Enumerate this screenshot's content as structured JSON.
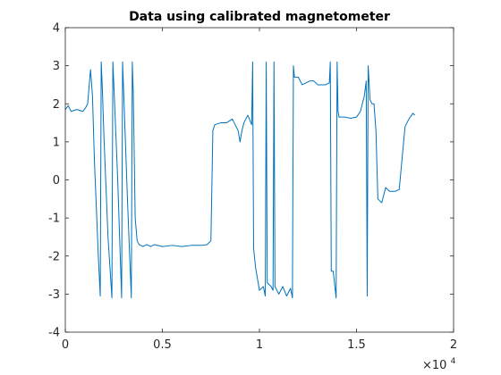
{
  "chart_data": {
    "type": "line",
    "title": "Data using calibrated magnetometer",
    "xlabel": "",
    "ylabel": "",
    "xlim": [
      0,
      20000
    ],
    "ylim": [
      -4,
      4
    ],
    "x_ticks": [
      0,
      5000,
      10000,
      15000,
      20000
    ],
    "x_tick_labels": [
      "0",
      "0.5",
      "1",
      "1.5",
      "2"
    ],
    "x_exponent_label": "×10",
    "x_exponent_power": "4",
    "y_ticks": [
      -4,
      -3,
      -2,
      -1,
      0,
      1,
      2,
      3,
      4
    ],
    "y_tick_labels": [
      "-4",
      "-3",
      "-2",
      "-1",
      "0",
      "1",
      "2",
      "3",
      "4"
    ],
    "grid": false,
    "line_color": "#0072bd",
    "series": [
      {
        "x": [
          0,
          150,
          300,
          600,
          900,
          1050,
          1150,
          1250,
          1300,
          1400,
          1500,
          1700,
          1800,
          1850,
          1900,
          2000,
          2200,
          2400,
          2450,
          2500,
          2700,
          2900,
          2950,
          3000,
          3200,
          3400,
          3450,
          3500,
          3600,
          3700,
          3750,
          3800,
          4000,
          4200,
          4400,
          4600,
          5000,
          5500,
          6000,
          6500,
          7000,
          7300,
          7500,
          7600,
          7700,
          8000,
          8300,
          8600,
          8800,
          8900,
          9000,
          9100,
          9200,
          9400,
          9600,
          9650,
          9700,
          9800,
          10000,
          10200,
          10300,
          10350,
          10400,
          10600,
          10700,
          10750,
          10800,
          10900,
          11000,
          11200,
          11400,
          11600,
          11700,
          11750,
          11800,
          12000,
          12200,
          12400,
          12600,
          12800,
          13000,
          13200,
          13400,
          13600,
          13650,
          13700,
          13800,
          13950,
          14000,
          14050,
          14100,
          14400,
          14700,
          15000,
          15200,
          15400,
          15500,
          15550,
          15600,
          15700,
          15800,
          15900,
          16000,
          16100,
          16300,
          16500,
          16700,
          17000,
          17200,
          17300,
          17500,
          17700,
          17900,
          18000
        ],
        "y": [
          1.85,
          1.95,
          1.8,
          1.85,
          1.8,
          1.9,
          2.0,
          2.6,
          2.9,
          2.2,
          0.5,
          -2.0,
          -3.05,
          3.1,
          2.5,
          1.0,
          -1.5,
          -3.1,
          3.1,
          2.5,
          0.0,
          -3.1,
          3.1,
          2.4,
          -0.5,
          -3.1,
          3.1,
          2.3,
          -1.0,
          -1.6,
          -1.65,
          -1.7,
          -1.75,
          -1.7,
          -1.75,
          -1.7,
          -1.75,
          -1.72,
          -1.75,
          -1.72,
          -1.72,
          -1.7,
          -1.6,
          1.3,
          1.45,
          1.5,
          1.5,
          1.6,
          1.4,
          1.3,
          1.0,
          1.3,
          1.5,
          1.7,
          1.45,
          3.1,
          -1.8,
          -2.3,
          -2.9,
          -2.8,
          -3.05,
          3.1,
          -2.7,
          -2.8,
          -2.9,
          3.1,
          -2.8,
          -2.9,
          -3.0,
          -2.8,
          -3.05,
          -2.85,
          -3.1,
          3.0,
          2.7,
          2.7,
          2.5,
          2.55,
          2.6,
          2.6,
          2.5,
          2.5,
          2.5,
          2.55,
          3.1,
          -2.4,
          -2.4,
          -3.1,
          3.1,
          1.8,
          1.65,
          1.65,
          1.62,
          1.65,
          1.8,
          2.2,
          2.6,
          -3.05,
          3.0,
          2.1,
          2.0,
          2.0,
          1.3,
          -0.5,
          -0.6,
          -0.2,
          -0.3,
          -0.3,
          -0.25,
          0.3,
          1.4,
          1.6,
          1.75,
          1.7
        ]
      }
    ]
  }
}
